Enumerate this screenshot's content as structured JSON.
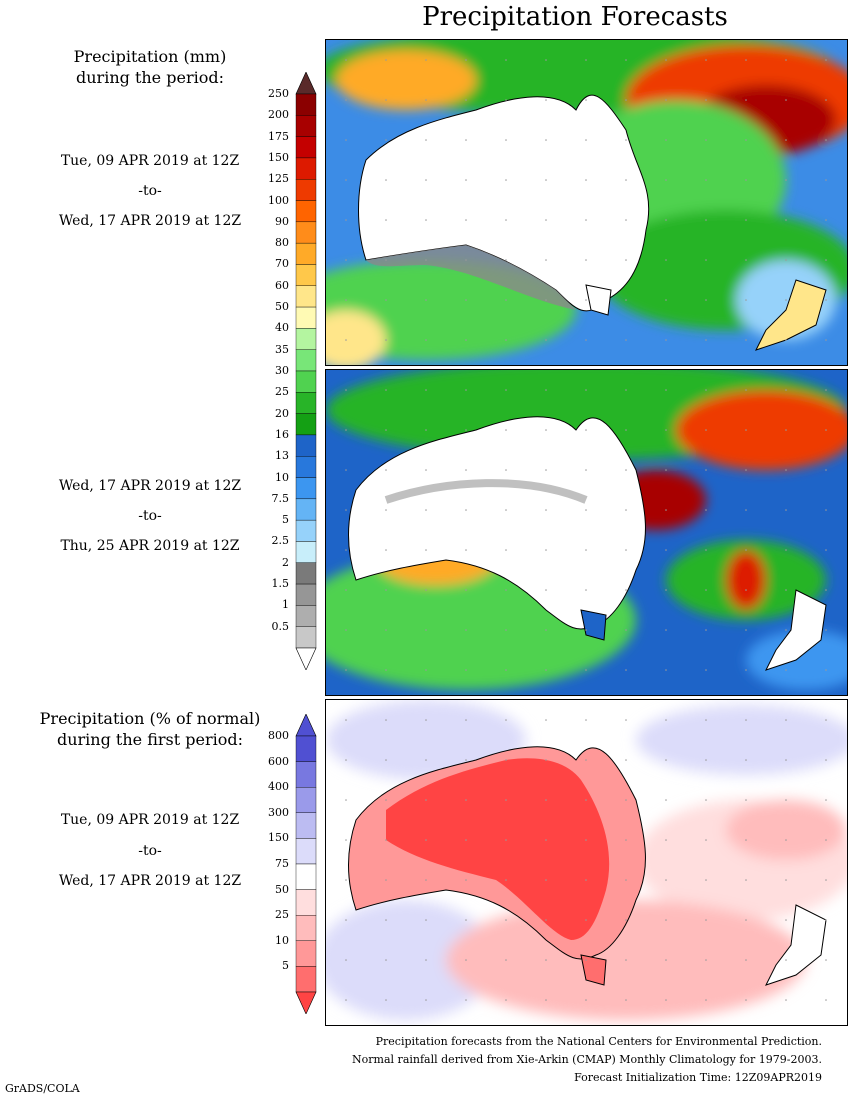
{
  "title": "Precipitation Forecasts",
  "panel1": {
    "heading_line1": "Precipitation (mm)",
    "heading_line2": "during the period:",
    "start": "Tue, 09 APR 2019 at 12Z",
    "to": "-to-",
    "end": "Wed, 17 APR 2019 at 12Z"
  },
  "panel2": {
    "start": "Wed, 17 APR 2019 at 12Z",
    "to": "-to-",
    "end": "Thu, 25 APR 2019 at 12Z"
  },
  "panel3": {
    "heading_line1": "Precipitation (% of normal)",
    "heading_line2": "during the first period:",
    "start": "Tue, 09 APR 2019 at 12Z",
    "to": "-to-",
    "end": "Wed, 17 APR 2019 at 12Z"
  },
  "precip_scale": {
    "labels": [
      "250",
      "200",
      "175",
      "150",
      "125",
      "100",
      "90",
      "80",
      "70",
      "60",
      "50",
      "40",
      "35",
      "30",
      "25",
      "20",
      "16",
      "13",
      "10",
      "7.5",
      "5",
      "2.5",
      "2",
      "1.5",
      "1",
      "0.5"
    ],
    "colors": [
      "#8b0000",
      "#a80000",
      "#c40000",
      "#dd1a00",
      "#ee3a00",
      "#ff6400",
      "#ff8c1a",
      "#ffaa28",
      "#ffc84a",
      "#ffe68a",
      "#fffab4",
      "#b4f5a0",
      "#78e678",
      "#50d250",
      "#28b428",
      "#14a014",
      "#1e64c8",
      "#2878dc",
      "#3c96f0",
      "#64b4f5",
      "#96d2fa",
      "#c8eefa",
      "#7a7a7a",
      "#969696",
      "#aeaeae",
      "#c8c8c8",
      "#ffffff"
    ],
    "top_arrow_color": "#5a2a2a"
  },
  "pct_scale": {
    "labels": [
      "800",
      "600",
      "400",
      "300",
      "150",
      "75",
      "50",
      "25",
      "10",
      "5"
    ],
    "colors": [
      "#5050d2",
      "#7878e0",
      "#9a9aea",
      "#bcbcf2",
      "#dcdcfa",
      "#ffffff",
      "#ffdede",
      "#ffbcbc",
      "#ff9898",
      "#ff6e6e",
      "#ff4444"
    ]
  },
  "footer": {
    "line1": "Precipitation forecasts from the National Centers for Environmental Prediction.",
    "line2": "Normal rainfall derived from Xie-Arkin (CMAP) Monthly Climatology for 1979-2003.",
    "line3": "Forecast Initialization Time: 12Z09APR2019"
  },
  "credit": "GrADS/COLA"
}
